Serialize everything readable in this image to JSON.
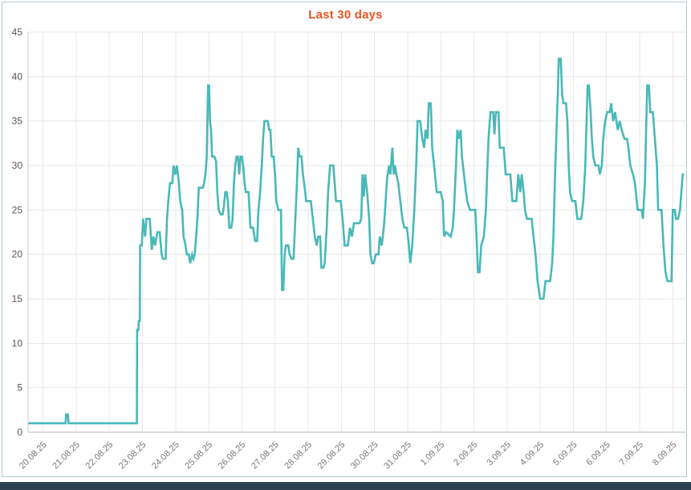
{
  "panel": {
    "title": "Last 30 days"
  },
  "colors": {
    "title": "#e95420",
    "line": "#49b8b8",
    "grid": "#e8e8e8",
    "axis_line": "#b0b6ba",
    "y_axis_line": "#c8cccf",
    "y_tick_text": "#555555",
    "x_tick_text": "#787878",
    "panel_border": "#b5c9d4",
    "bottom_bar": "#2e3f54",
    "background": "#ffffff"
  },
  "chart_data": {
    "type": "line",
    "title": "Last 30 days",
    "legend": "none",
    "grid": true,
    "line_color": "#49b8b8",
    "xlabel": "",
    "ylabel": "",
    "ylim": [
      0,
      45
    ],
    "y_ticks": [
      0,
      5,
      10,
      15,
      20,
      25,
      30,
      35,
      40,
      45
    ],
    "x_tick_labels": [
      "20.08.25",
      "21.08.25",
      "22.08.25",
      "23.08.25",
      "24.08.25",
      "25.08.25",
      "26.08.25",
      "27.08.25",
      "28.08.25",
      "29.08.25",
      "30.08.25",
      "31.08.25",
      "1.09.25",
      "2.09.25",
      "3.09.25",
      "4.09.25",
      "5.09.25",
      "6.09.25",
      "7.09.25",
      "8.09.25"
    ],
    "xlim_days": [
      -0.45,
      19.38
    ],
    "points": [
      [
        -0.44,
        1
      ],
      [
        0.68,
        1
      ],
      [
        0.7,
        2
      ],
      [
        0.75,
        2
      ],
      [
        0.77,
        1
      ],
      [
        2.83,
        1
      ],
      [
        2.84,
        11.5
      ],
      [
        2.88,
        11.5
      ],
      [
        2.89,
        12.5
      ],
      [
        2.92,
        12.5
      ],
      [
        2.93,
        21
      ],
      [
        2.98,
        21
      ],
      [
        3.02,
        24
      ],
      [
        3.08,
        22
      ],
      [
        3.12,
        24
      ],
      [
        3.22,
        24
      ],
      [
        3.28,
        20.5
      ],
      [
        3.33,
        22
      ],
      [
        3.38,
        21
      ],
      [
        3.45,
        22.5
      ],
      [
        3.52,
        22.5
      ],
      [
        3.58,
        20
      ],
      [
        3.62,
        19.5
      ],
      [
        3.7,
        19.5
      ],
      [
        3.74,
        24
      ],
      [
        3.78,
        26
      ],
      [
        3.83,
        28
      ],
      [
        3.9,
        28
      ],
      [
        3.94,
        30
      ],
      [
        3.99,
        29
      ],
      [
        4.04,
        30
      ],
      [
        4.1,
        28
      ],
      [
        4.14,
        26
      ],
      [
        4.2,
        25
      ],
      [
        4.24,
        22
      ],
      [
        4.3,
        21
      ],
      [
        4.34,
        20
      ],
      [
        4.4,
        20
      ],
      [
        4.44,
        19
      ],
      [
        4.5,
        20
      ],
      [
        4.54,
        19.5
      ],
      [
        4.58,
        20
      ],
      [
        4.62,
        22
      ],
      [
        4.66,
        24
      ],
      [
        4.7,
        27.5
      ],
      [
        4.82,
        27.5
      ],
      [
        4.86,
        28
      ],
      [
        4.9,
        29
      ],
      [
        4.94,
        31
      ],
      [
        4.96,
        35
      ],
      [
        4.98,
        39
      ],
      [
        5.01,
        39
      ],
      [
        5.04,
        35
      ],
      [
        5.07,
        34
      ],
      [
        5.1,
        31
      ],
      [
        5.17,
        31
      ],
      [
        5.22,
        30.5
      ],
      [
        5.26,
        27
      ],
      [
        5.3,
        25
      ],
      [
        5.36,
        24.5
      ],
      [
        5.42,
        24.5
      ],
      [
        5.46,
        25.5
      ],
      [
        5.5,
        27
      ],
      [
        5.54,
        27
      ],
      [
        5.58,
        26
      ],
      [
        5.62,
        23
      ],
      [
        5.68,
        23
      ],
      [
        5.72,
        24
      ],
      [
        5.76,
        28
      ],
      [
        5.8,
        30
      ],
      [
        5.84,
        31
      ],
      [
        5.88,
        31
      ],
      [
        5.92,
        29
      ],
      [
        5.96,
        31
      ],
      [
        6.0,
        31
      ],
      [
        6.04,
        30
      ],
      [
        6.08,
        28
      ],
      [
        6.12,
        27
      ],
      [
        6.2,
        27
      ],
      [
        6.26,
        23
      ],
      [
        6.34,
        23
      ],
      [
        6.4,
        21.5
      ],
      [
        6.46,
        21.5
      ],
      [
        6.5,
        25
      ],
      [
        6.55,
        27
      ],
      [
        6.6,
        30
      ],
      [
        6.64,
        33
      ],
      [
        6.68,
        35
      ],
      [
        6.78,
        35
      ],
      [
        6.82,
        34
      ],
      [
        6.86,
        34
      ],
      [
        6.9,
        31
      ],
      [
        6.96,
        31
      ],
      [
        7.0,
        29
      ],
      [
        7.04,
        26
      ],
      [
        7.1,
        25
      ],
      [
        7.18,
        25
      ],
      [
        7.21,
        16
      ],
      [
        7.25,
        16
      ],
      [
        7.29,
        20
      ],
      [
        7.33,
        21
      ],
      [
        7.4,
        21
      ],
      [
        7.44,
        20
      ],
      [
        7.5,
        19.5
      ],
      [
        7.56,
        19.5
      ],
      [
        7.6,
        23
      ],
      [
        7.66,
        28
      ],
      [
        7.7,
        32
      ],
      [
        7.74,
        31
      ],
      [
        7.8,
        31
      ],
      [
        7.84,
        29
      ],
      [
        7.88,
        28
      ],
      [
        7.94,
        26
      ],
      [
        8.08,
        26
      ],
      [
        8.14,
        24
      ],
      [
        8.2,
        22
      ],
      [
        8.26,
        21
      ],
      [
        8.3,
        22
      ],
      [
        8.36,
        22
      ],
      [
        8.4,
        18.5
      ],
      [
        8.46,
        18.5
      ],
      [
        8.5,
        19
      ],
      [
        8.56,
        23
      ],
      [
        8.6,
        27
      ],
      [
        8.66,
        30
      ],
      [
        8.76,
        30
      ],
      [
        8.8,
        28
      ],
      [
        8.84,
        26
      ],
      [
        8.98,
        26
      ],
      [
        9.04,
        24
      ],
      [
        9.1,
        21
      ],
      [
        9.2,
        21
      ],
      [
        9.26,
        23
      ],
      [
        9.32,
        22
      ],
      [
        9.38,
        23.5
      ],
      [
        9.55,
        23.5
      ],
      [
        9.6,
        24
      ],
      [
        9.64,
        29
      ],
      [
        9.68,
        26.5
      ],
      [
        9.72,
        29
      ],
      [
        9.78,
        27
      ],
      [
        9.84,
        24
      ],
      [
        9.88,
        20
      ],
      [
        9.93,
        19
      ],
      [
        9.98,
        19
      ],
      [
        10.04,
        20
      ],
      [
        10.12,
        20
      ],
      [
        10.16,
        22
      ],
      [
        10.22,
        21
      ],
      [
        10.28,
        23
      ],
      [
        10.32,
        25
      ],
      [
        10.38,
        28.5
      ],
      [
        10.44,
        30
      ],
      [
        10.48,
        29
      ],
      [
        10.54,
        32
      ],
      [
        10.58,
        29
      ],
      [
        10.62,
        30
      ],
      [
        10.66,
        29
      ],
      [
        10.72,
        28
      ],
      [
        10.78,
        26
      ],
      [
        10.84,
        24
      ],
      [
        10.9,
        23
      ],
      [
        10.98,
        23
      ],
      [
        11.04,
        21
      ],
      [
        11.08,
        19
      ],
      [
        11.14,
        21
      ],
      [
        11.2,
        25
      ],
      [
        11.26,
        30
      ],
      [
        11.3,
        35
      ],
      [
        11.38,
        35
      ],
      [
        11.44,
        33
      ],
      [
        11.5,
        32
      ],
      [
        11.54,
        34
      ],
      [
        11.6,
        33
      ],
      [
        11.64,
        37
      ],
      [
        11.7,
        37
      ],
      [
        11.74,
        32
      ],
      [
        11.8,
        30
      ],
      [
        11.88,
        27
      ],
      [
        12.0,
        27
      ],
      [
        12.06,
        26
      ],
      [
        12.1,
        22
      ],
      [
        12.16,
        22.5
      ],
      [
        12.3,
        22
      ],
      [
        12.36,
        23
      ],
      [
        12.4,
        25
      ],
      [
        12.46,
        30
      ],
      [
        12.5,
        34
      ],
      [
        12.54,
        33
      ],
      [
        12.6,
        34
      ],
      [
        12.64,
        31
      ],
      [
        12.7,
        29
      ],
      [
        12.76,
        27
      ],
      [
        12.8,
        26
      ],
      [
        12.88,
        25
      ],
      [
        13.04,
        25
      ],
      [
        13.08,
        22
      ],
      [
        13.12,
        18
      ],
      [
        13.17,
        18
      ],
      [
        13.22,
        21
      ],
      [
        13.3,
        22
      ],
      [
        13.36,
        25
      ],
      [
        13.4,
        29
      ],
      [
        13.44,
        33
      ],
      [
        13.5,
        36
      ],
      [
        13.58,
        36
      ],
      [
        13.62,
        33.5
      ],
      [
        13.66,
        36
      ],
      [
        13.74,
        36
      ],
      [
        13.78,
        32
      ],
      [
        13.9,
        32
      ],
      [
        13.96,
        29
      ],
      [
        14.1,
        29
      ],
      [
        14.16,
        26
      ],
      [
        14.28,
        26
      ],
      [
        14.34,
        29
      ],
      [
        14.4,
        27
      ],
      [
        14.44,
        29
      ],
      [
        14.5,
        27
      ],
      [
        14.54,
        25
      ],
      [
        14.6,
        24
      ],
      [
        14.74,
        24
      ],
      [
        14.8,
        22
      ],
      [
        14.86,
        20
      ],
      [
        14.92,
        17
      ],
      [
        14.96,
        16
      ],
      [
        15.0,
        15
      ],
      [
        15.1,
        15
      ],
      [
        15.16,
        17
      ],
      [
        15.3,
        17
      ],
      [
        15.36,
        19
      ],
      [
        15.4,
        22
      ],
      [
        15.44,
        28
      ],
      [
        15.5,
        35
      ],
      [
        15.53,
        38
      ],
      [
        15.56,
        42
      ],
      [
        15.62,
        42
      ],
      [
        15.66,
        38
      ],
      [
        15.7,
        37
      ],
      [
        15.78,
        37
      ],
      [
        15.82,
        35
      ],
      [
        15.86,
        30
      ],
      [
        15.9,
        27
      ],
      [
        15.96,
        26
      ],
      [
        16.06,
        26
      ],
      [
        16.12,
        24
      ],
      [
        16.24,
        24
      ],
      [
        16.3,
        26
      ],
      [
        16.36,
        30
      ],
      [
        16.4,
        35
      ],
      [
        16.43,
        39
      ],
      [
        16.47,
        39
      ],
      [
        16.52,
        36
      ],
      [
        16.56,
        33
      ],
      [
        16.6,
        31
      ],
      [
        16.66,
        30
      ],
      [
        16.76,
        30
      ],
      [
        16.8,
        29
      ],
      [
        16.86,
        30
      ],
      [
        16.9,
        33
      ],
      [
        16.96,
        35
      ],
      [
        17.02,
        36
      ],
      [
        17.1,
        36
      ],
      [
        17.14,
        37
      ],
      [
        17.2,
        35
      ],
      [
        17.26,
        36
      ],
      [
        17.34,
        34
      ],
      [
        17.4,
        35
      ],
      [
        17.46,
        34
      ],
      [
        17.54,
        33
      ],
      [
        17.62,
        33
      ],
      [
        17.66,
        32
      ],
      [
        17.72,
        30
      ],
      [
        17.8,
        29
      ],
      [
        17.86,
        28
      ],
      [
        17.94,
        25
      ],
      [
        18.06,
        25
      ],
      [
        18.1,
        24
      ],
      [
        18.16,
        28
      ],
      [
        18.2,
        35
      ],
      [
        18.23,
        39
      ],
      [
        18.28,
        39
      ],
      [
        18.32,
        36
      ],
      [
        18.4,
        36
      ],
      [
        18.46,
        33
      ],
      [
        18.52,
        30
      ],
      [
        18.56,
        25
      ],
      [
        18.66,
        25
      ],
      [
        18.72,
        21
      ],
      [
        18.78,
        18
      ],
      [
        18.84,
        17
      ],
      [
        18.96,
        17
      ],
      [
        19.0,
        25
      ],
      [
        19.06,
        25
      ],
      [
        19.1,
        24
      ],
      [
        19.16,
        24
      ],
      [
        19.22,
        25
      ],
      [
        19.26,
        27
      ],
      [
        19.3,
        29
      ],
      [
        19.34,
        29
      ]
    ]
  }
}
